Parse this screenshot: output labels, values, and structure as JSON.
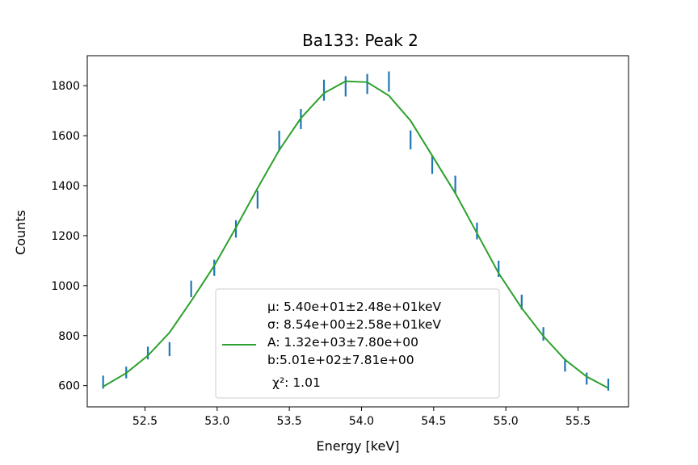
{
  "chart_data": {
    "type": "line",
    "title": "Ba133: Peak 2",
    "xlabel": "Energy [keV]",
    "ylabel": "Counts",
    "xlim": [
      52.1,
      55.85
    ],
    "ylim": [
      515,
      1920
    ],
    "xticks": [
      52.5,
      53.0,
      53.5,
      54.0,
      54.5,
      55.0,
      55.5
    ],
    "xtick_labels": [
      "52.5",
      "53.0",
      "53.5",
      "54.0",
      "54.5",
      "55.0",
      "55.5"
    ],
    "yticks": [
      600,
      800,
      1000,
      1200,
      1400,
      1600,
      1800
    ],
    "ytick_labels": [
      "600",
      "800",
      "1000",
      "1200",
      "1400",
      "1600",
      "1800"
    ],
    "grid": false,
    "legend_position": "lower-center",
    "series": [
      {
        "kind": "errorbar",
        "color": "#1f77b4",
        "points": [
          {
            "x": 52.21,
            "lo": 588,
            "hi": 640
          },
          {
            "x": 52.37,
            "lo": 629,
            "hi": 676
          },
          {
            "x": 52.52,
            "lo": 705,
            "hi": 756
          },
          {
            "x": 52.67,
            "lo": 718,
            "hi": 774
          },
          {
            "x": 52.82,
            "lo": 954,
            "hi": 1020
          },
          {
            "x": 52.98,
            "lo": 1039,
            "hi": 1104
          },
          {
            "x": 53.13,
            "lo": 1192,
            "hi": 1262
          },
          {
            "x": 53.28,
            "lo": 1308,
            "hi": 1380
          },
          {
            "x": 53.43,
            "lo": 1538,
            "hi": 1620
          },
          {
            "x": 53.58,
            "lo": 1626,
            "hi": 1707
          },
          {
            "x": 53.74,
            "lo": 1740,
            "hi": 1824
          },
          {
            "x": 53.89,
            "lo": 1757,
            "hi": 1838
          },
          {
            "x": 54.04,
            "lo": 1767,
            "hi": 1847
          },
          {
            "x": 54.19,
            "lo": 1776,
            "hi": 1857
          },
          {
            "x": 54.34,
            "lo": 1545,
            "hi": 1621
          },
          {
            "x": 54.49,
            "lo": 1447,
            "hi": 1521
          },
          {
            "x": 54.65,
            "lo": 1367,
            "hi": 1440
          },
          {
            "x": 54.8,
            "lo": 1185,
            "hi": 1252
          },
          {
            "x": 54.95,
            "lo": 1035,
            "hi": 1100
          },
          {
            "x": 55.11,
            "lo": 904,
            "hi": 964
          },
          {
            "x": 55.26,
            "lo": 780,
            "hi": 834
          },
          {
            "x": 55.41,
            "lo": 656,
            "hi": 708
          },
          {
            "x": 55.56,
            "lo": 604,
            "hi": 652
          },
          {
            "x": 55.71,
            "lo": 580,
            "hi": 628
          }
        ]
      },
      {
        "kind": "line",
        "color": "#2ca02c",
        "x": [
          52.21,
          52.37,
          52.52,
          52.67,
          52.82,
          52.98,
          53.13,
          53.28,
          53.43,
          53.58,
          53.74,
          53.89,
          54.04,
          54.19,
          54.34,
          54.49,
          54.65,
          54.8,
          54.95,
          55.11,
          55.26,
          55.41,
          55.56,
          55.71
        ],
        "y": [
          596,
          650,
          720,
          812,
          938,
          1080,
          1232,
          1390,
          1542,
          1670,
          1770,
          1818,
          1814,
          1760,
          1660,
          1520,
          1370,
          1210,
          1050,
          910,
          798,
          704,
          636,
          590
        ]
      }
    ],
    "legend": {
      "lines": [
        "μ: 5.40e+01±2.48e+01keV",
        "σ: 8.54e+00±2.58e+01keV",
        "A: 1.32e+03±7.80e+00",
        "b:5.01e+02±7.81e+00",
        "χ²: 1.01"
      ]
    }
  }
}
